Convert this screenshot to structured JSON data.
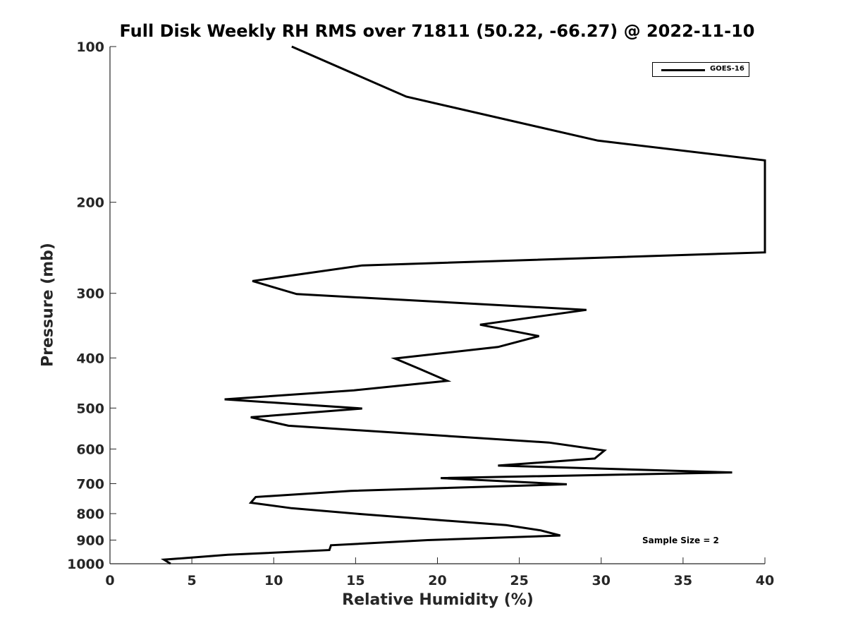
{
  "chart_data": {
    "type": "line",
    "title": "Full Disk Weekly RH RMS over 71811 (50.22, -66.27) @ 2022-11-10",
    "xlabel": "Relative Humidity (%)",
    "ylabel": "Pressure (mb)",
    "xlim": [
      0,
      40
    ],
    "ylim": [
      100,
      1000
    ],
    "y_scale": "log",
    "y_reversed": true,
    "grid": false,
    "x_ticks": [
      0,
      5,
      10,
      15,
      20,
      25,
      30,
      35,
      40
    ],
    "x_tick_labels": [
      "0",
      "5",
      "10",
      "15",
      "20",
      "25",
      "30",
      "35",
      "40"
    ],
    "y_ticks": [
      100,
      200,
      300,
      400,
      500,
      600,
      700,
      800,
      900,
      1000
    ],
    "y_tick_labels": [
      "100",
      "200",
      "300",
      "400",
      "500",
      "600",
      "700",
      "800",
      "900",
      "1000"
    ],
    "legend_position": "top-right",
    "annotation": "Sample Size = 2",
    "series": [
      {
        "name": "GOES-16",
        "color": "#000000",
        "points": [
          [
            11.1,
            100
          ],
          [
            18.1,
            125
          ],
          [
            29.8,
            152
          ],
          [
            40,
            166
          ],
          [
            40,
            250
          ],
          [
            15.4,
            265
          ],
          [
            8.7,
            284
          ],
          [
            11.4,
            301
          ],
          [
            29.1,
            323
          ],
          [
            22.6,
            345
          ],
          [
            26.2,
            363
          ],
          [
            23.7,
            381
          ],
          [
            17.4,
            401
          ],
          [
            18.9,
            420
          ],
          [
            20.6,
            443
          ],
          [
            14.9,
            462
          ],
          [
            7.0,
            481
          ],
          [
            15.4,
            501
          ],
          [
            8.6,
            521
          ],
          [
            10.9,
            541
          ],
          [
            26.8,
            583
          ],
          [
            30.2,
            604
          ],
          [
            29.6,
            626
          ],
          [
            23.7,
            646
          ],
          [
            38.0,
            666
          ],
          [
            20.2,
            683
          ],
          [
            27.9,
            702
          ],
          [
            14.7,
            723
          ],
          [
            8.9,
            743
          ],
          [
            8.6,
            762
          ],
          [
            11.1,
            781
          ],
          [
            15.4,
            802
          ],
          [
            24.2,
            842
          ],
          [
            26.3,
            862
          ],
          [
            27.5,
            882
          ],
          [
            19.4,
            900
          ],
          [
            13.5,
            921
          ],
          [
            13.4,
            941
          ],
          [
            7.2,
            961
          ],
          [
            3.3,
            982
          ],
          [
            3.7,
            1000
          ]
        ]
      }
    ]
  }
}
